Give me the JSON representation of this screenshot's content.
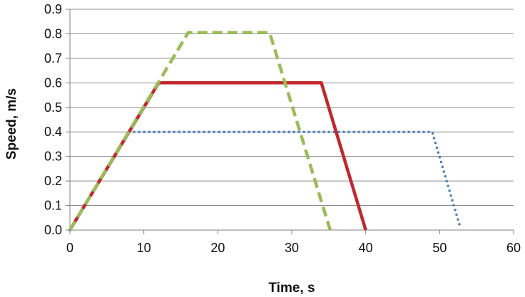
{
  "chart_data": {
    "type": "line",
    "xlabel": "Time, s",
    "ylabel": "Speed, m/s",
    "xlim": [
      0,
      60
    ],
    "ylim": [
      0,
      0.9
    ],
    "xticks": [
      0,
      10,
      20,
      30,
      40,
      50,
      60
    ],
    "yticks": [
      0.0,
      0.1,
      0.2,
      0.3,
      0.4,
      0.5,
      0.6,
      0.7,
      0.8,
      0.9
    ],
    "xtick_labels": [
      "0",
      "10",
      "20",
      "30",
      "40",
      "50",
      "60"
    ],
    "ytick_labels": [
      "0.0",
      "0.1",
      "0.2",
      "0.3",
      "0.4",
      "0.5",
      "0.6",
      "0.7",
      "0.8",
      "0.9"
    ],
    "grid": "horizontal",
    "legend": "none",
    "series": [
      {
        "style": "dotted",
        "color": "#4a7ebb",
        "points": [
          [
            0,
            0.0
          ],
          [
            8,
            0.4
          ],
          [
            49,
            0.4
          ],
          [
            52.7,
            0.02
          ]
        ]
      },
      {
        "style": "solid",
        "color": "#c0282d",
        "points": [
          [
            0,
            0.0
          ],
          [
            12,
            0.6
          ],
          [
            34,
            0.6
          ],
          [
            40,
            0.0
          ]
        ]
      },
      {
        "style": "dashed",
        "color": "#9bbb59",
        "points": [
          [
            0,
            0.0
          ],
          [
            16,
            0.805
          ],
          [
            27,
            0.805
          ],
          [
            35.2,
            0.0
          ]
        ]
      }
    ]
  }
}
